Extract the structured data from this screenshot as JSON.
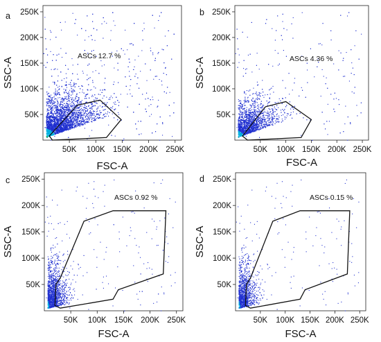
{
  "chart_data": [
    {
      "type": "scatter",
      "panel": "a",
      "xlabel": "FSC-A",
      "ylabel": "SSC-A",
      "xticks": [
        "50K",
        "100K",
        "150K",
        "200K",
        "250K"
      ],
      "yticks": [
        "50K",
        "100K",
        "150K",
        "200K",
        "250K"
      ],
      "xlim": [
        0,
        262144
      ],
      "ylim": [
        0,
        262144
      ],
      "gate": {
        "name": "ASCs",
        "percent": 12.7,
        "label": "ASCs 12.7 %",
        "vertices": [
          [
            12000,
            8000
          ],
          [
            65000,
            68000
          ],
          [
            108000,
            78000
          ],
          [
            148000,
            40000
          ],
          [
            120000,
            5000
          ],
          [
            18000,
            0
          ]
        ]
      },
      "density": "high"
    },
    {
      "type": "scatter",
      "panel": "b",
      "xlabel": "FSC-A",
      "ylabel": "SSC-A",
      "xticks": [
        "50K",
        "100K",
        "150K",
        "200K",
        "250K"
      ],
      "yticks": [
        "50K",
        "100K",
        "150K",
        "200K",
        "250K"
      ],
      "xlim": [
        0,
        262144
      ],
      "ylim": [
        0,
        262144
      ],
      "gate": {
        "name": "ASCs",
        "percent": 4.36,
        "label": "ASCs 4.36 %",
        "vertices": [
          [
            15000,
            8000
          ],
          [
            60000,
            65000
          ],
          [
            100000,
            75000
          ],
          [
            150000,
            40000
          ],
          [
            130000,
            5000
          ],
          [
            25000,
            0
          ]
        ]
      },
      "density": "medium"
    },
    {
      "type": "scatter",
      "panel": "c",
      "xlabel": "FSC-A",
      "ylabel": "SSC-A",
      "xticks": [
        "50K",
        "100K",
        "150K",
        "200K",
        "250K"
      ],
      "yticks": [
        "50K",
        "100K",
        "150K",
        "200K",
        "250K"
      ],
      "xlim": [
        0,
        262144
      ],
      "ylim": [
        0,
        262144
      ],
      "gate": {
        "name": "ASCs",
        "percent": 0.92,
        "label": "ASCs 0.92 %",
        "vertices": [
          [
            20000,
            10000
          ],
          [
            22000,
            50000
          ],
          [
            30000,
            62000
          ],
          [
            75000,
            170000
          ],
          [
            130000,
            190000
          ],
          [
            230000,
            190000
          ],
          [
            225000,
            70000
          ],
          [
            140000,
            40000
          ],
          [
            130000,
            22000
          ],
          [
            30000,
            5000
          ]
        ]
      },
      "density": "low"
    },
    {
      "type": "scatter",
      "panel": "d",
      "xlabel": "FSC-A",
      "ylabel": "SSC-A",
      "xticks": [
        "50K",
        "100K",
        "150K",
        "200K",
        "250K"
      ],
      "yticks": [
        "50K",
        "100K",
        "150K",
        "200K",
        "250K"
      ],
      "xlim": [
        0,
        262144
      ],
      "ylim": [
        0,
        262144
      ],
      "gate": {
        "name": "ASCs",
        "percent": 0.15,
        "label": "ASCs 0.15 %",
        "vertices": [
          [
            20000,
            10000
          ],
          [
            22000,
            50000
          ],
          [
            30000,
            62000
          ],
          [
            75000,
            170000
          ],
          [
            130000,
            190000
          ],
          [
            230000,
            190000
          ],
          [
            225000,
            70000
          ],
          [
            140000,
            40000
          ],
          [
            130000,
            22000
          ],
          [
            30000,
            5000
          ]
        ]
      },
      "density": "very-low"
    }
  ],
  "colors": {
    "dots_sparse": "#2030d0",
    "dots_mid": "#00b0e0",
    "dots_dense": "#10c060",
    "dots_core": "#e0e020",
    "gate_line": "#111111",
    "axis": "#222222"
  }
}
